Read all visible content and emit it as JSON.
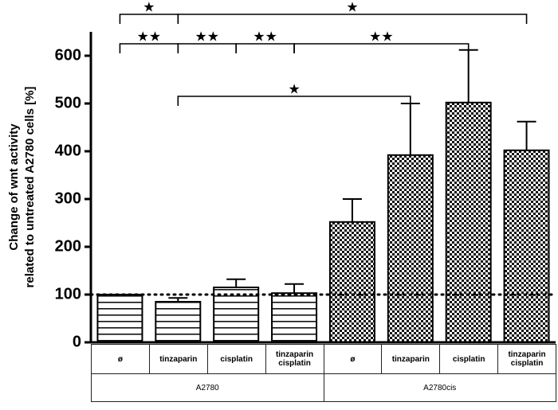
{
  "chart_data": {
    "type": "bar",
    "ylabel": [
      "Change of wnt activity",
      "related to untreated A2780 cells [%]"
    ],
    "categories": [
      "ø",
      "tinzaparin",
      "cisplatin",
      "tinzaparin\ncisplatin",
      "ø",
      "tinzaparin",
      "cisplatin",
      "tinzaparin\ncisplatin"
    ],
    "values": [
      100,
      85,
      115,
      103,
      252,
      392,
      502,
      402
    ],
    "errors": [
      0,
      8,
      17,
      19,
      48,
      108,
      110,
      60
    ],
    "groups": [
      {
        "label": "A2780",
        "span": 4,
        "pattern": "stripes"
      },
      {
        "label": "A2780cis",
        "span": 4,
        "pattern": "checker"
      }
    ],
    "reference_line": 100,
    "ylim": [
      0,
      650
    ],
    "yticks": [
      0,
      100,
      200,
      300,
      400,
      500,
      600
    ],
    "brackets": [
      [
        {
          "from": 0,
          "to": 1,
          "label": "★"
        },
        {
          "from": 1,
          "to": 7,
          "label": "★"
        }
      ],
      [
        {
          "from": 0,
          "to": 1,
          "label": "★★"
        },
        {
          "from": 1,
          "to": 2,
          "label": "★★"
        },
        {
          "from": 2,
          "to": 3,
          "label": "★★"
        },
        {
          "from": 3,
          "to": 6,
          "label": "★★"
        }
      ],
      [
        {
          "from": 1,
          "to": 5,
          "label": "★"
        }
      ]
    ]
  }
}
